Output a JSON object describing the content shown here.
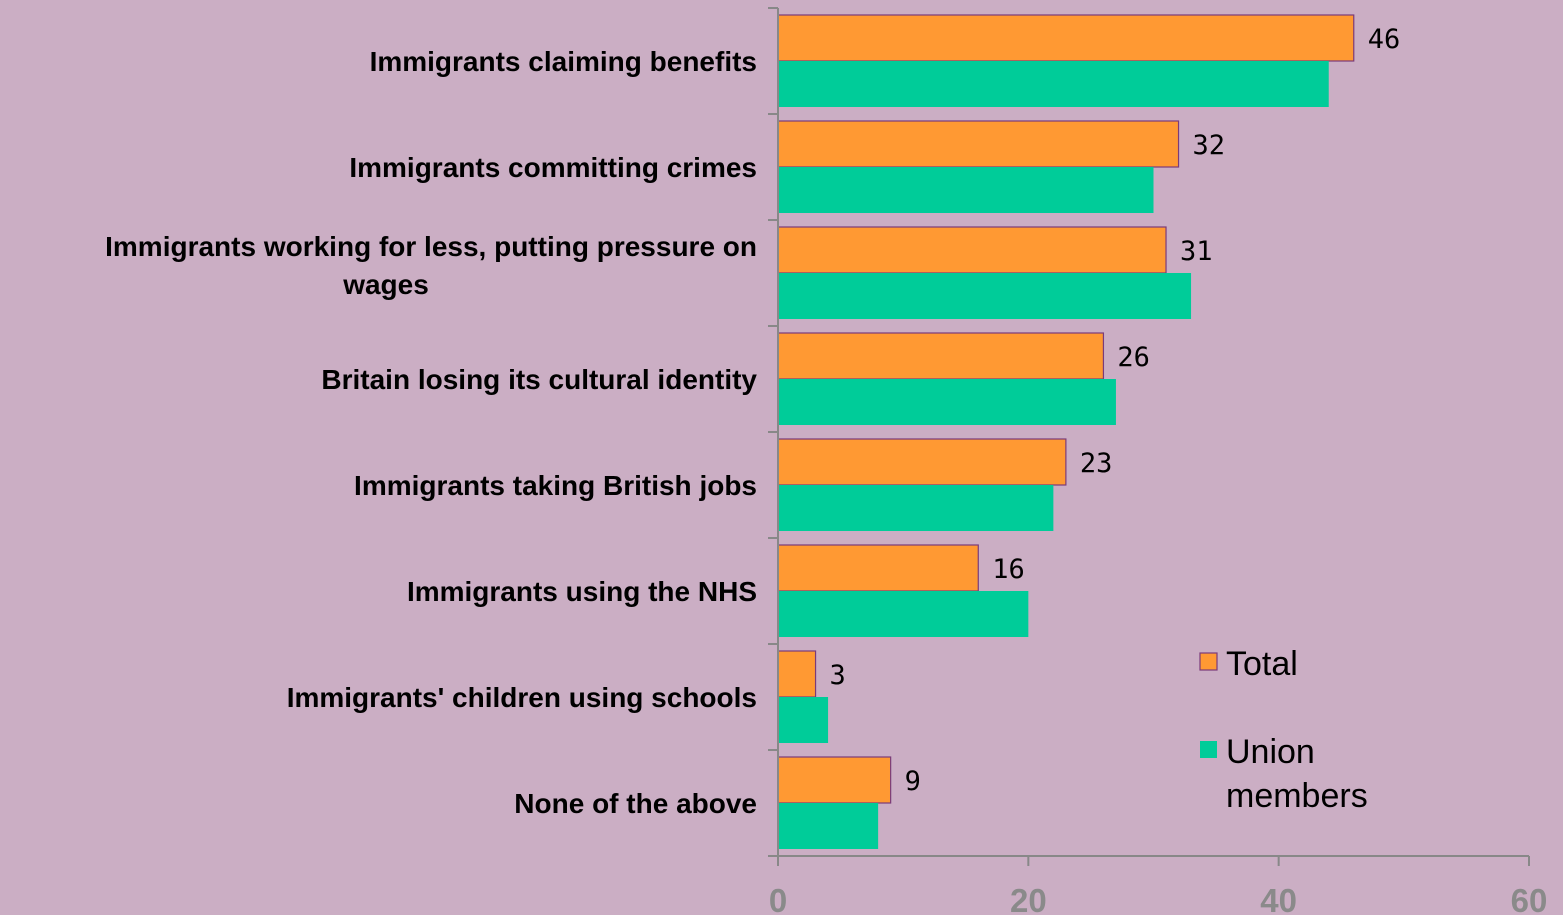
{
  "chart_data": {
    "type": "bar",
    "orientation": "horizontal",
    "categories": [
      [
        "Immigrants claiming benefits"
      ],
      [
        "Immigrants committing crimes"
      ],
      [
        "Immigrants working for less, putting pressure on",
        "wages"
      ],
      [
        "Britain losing its cultural identity"
      ],
      [
        "Immigrants taking British jobs"
      ],
      [
        "Immigrants using the NHS"
      ],
      [
        "Immigrants' children using schools"
      ],
      [
        "None of the above"
      ]
    ],
    "series": [
      {
        "name": "Total",
        "color": "#FF9933",
        "stroke": "#7A3B7A",
        "values": [
          46,
          32,
          31,
          26,
          23,
          16,
          3,
          9
        ],
        "show_data_labels": true
      },
      {
        "name": "Union members",
        "color": "#00CC99",
        "values": [
          44,
          30,
          33,
          27,
          22,
          20,
          4,
          8
        ],
        "show_data_labels": false
      }
    ],
    "xlim": [
      0,
      60
    ],
    "xticks": [
      0,
      20,
      40,
      60
    ],
    "grid": false,
    "legend_position": "bottom-right",
    "legend": [
      {
        "lines": [
          "Total"
        ],
        "color": "#FF9933"
      },
      {
        "lines": [
          "Union",
          "members"
        ],
        "color": "#00CC99"
      }
    ]
  }
}
